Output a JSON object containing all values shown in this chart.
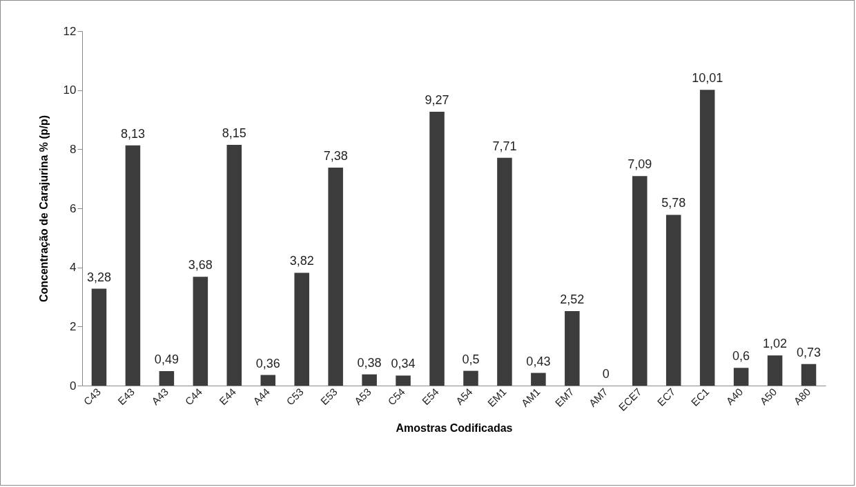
{
  "chart_data": {
    "type": "bar",
    "xlabel": "Amostras Codificadas",
    "ylabel": "Concentração de Carajurina % (p/p)",
    "categories": [
      "C43",
      "E43",
      "A43",
      "C44",
      "E44",
      "A44",
      "C53",
      "E53",
      "A53",
      "C54",
      "E54",
      "A54",
      "EM1",
      "AM1",
      "EM7",
      "AM7",
      "ECE7",
      "EC7",
      "EC1",
      "A40",
      "A50",
      "A80"
    ],
    "values": [
      3.28,
      8.13,
      0.49,
      3.68,
      8.15,
      0.36,
      3.82,
      7.38,
      0.38,
      0.34,
      9.27,
      0.5,
      7.71,
      0.43,
      2.52,
      0,
      7.09,
      5.78,
      10.01,
      0.6,
      1.02,
      0.73
    ],
    "value_labels": [
      "3,28",
      "8,13",
      "0,49",
      "3,68",
      "8,15",
      "0,36",
      "3,82",
      "7,38",
      "0,38",
      "0,34",
      "9,27",
      "0,5",
      "7,71",
      "0,43",
      "2,52",
      "0",
      "7,09",
      "5,78",
      "10,01",
      "0,6",
      "1,02",
      "0,73"
    ],
    "color": "#3c3c3c",
    "ylim": [
      0,
      12
    ],
    "yticks": [
      0,
      2,
      4,
      6,
      8,
      10,
      12
    ],
    "grid": false
  }
}
